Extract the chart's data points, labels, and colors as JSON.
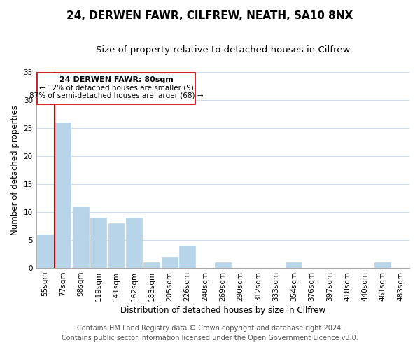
{
  "title": "24, DERWEN FAWR, CILFREW, NEATH, SA10 8NX",
  "subtitle": "Size of property relative to detached houses in Cilfrew",
  "xlabel": "Distribution of detached houses by size in Cilfrew",
  "ylabel": "Number of detached properties",
  "footer_line1": "Contains HM Land Registry data © Crown copyright and database right 2024.",
  "footer_line2": "Contains public sector information licensed under the Open Government Licence v3.0.",
  "bar_labels": [
    "55sqm",
    "77sqm",
    "98sqm",
    "119sqm",
    "141sqm",
    "162sqm",
    "183sqm",
    "205sqm",
    "226sqm",
    "248sqm",
    "269sqm",
    "290sqm",
    "312sqm",
    "333sqm",
    "354sqm",
    "376sqm",
    "397sqm",
    "418sqm",
    "440sqm",
    "461sqm",
    "483sqm"
  ],
  "bar_values": [
    6,
    26,
    11,
    9,
    8,
    9,
    1,
    2,
    4,
    0,
    1,
    0,
    0,
    0,
    1,
    0,
    0,
    0,
    0,
    1,
    0
  ],
  "bar_color": "#b8d4e8",
  "bar_edge_color": "#b8d4e8",
  "ref_line_color": "#cc0000",
  "annotation_title": "24 DERWEN FAWR: 80sqm",
  "annotation_line1": "← 12% of detached houses are smaller (9)",
  "annotation_line2": "87% of semi-detached houses are larger (68) →",
  "annotation_box_color": "#ffffff",
  "annotation_box_edge": "#cc0000",
  "ylim": [
    0,
    35
  ],
  "yticks": [
    0,
    5,
    10,
    15,
    20,
    25,
    30,
    35
  ],
  "background_color": "#ffffff",
  "grid_color": "#d0dce8",
  "title_fontsize": 11,
  "subtitle_fontsize": 9.5,
  "axis_label_fontsize": 8.5,
  "tick_fontsize": 7.5,
  "annotation_title_fontsize": 8,
  "annotation_text_fontsize": 7.5,
  "footer_fontsize": 7
}
